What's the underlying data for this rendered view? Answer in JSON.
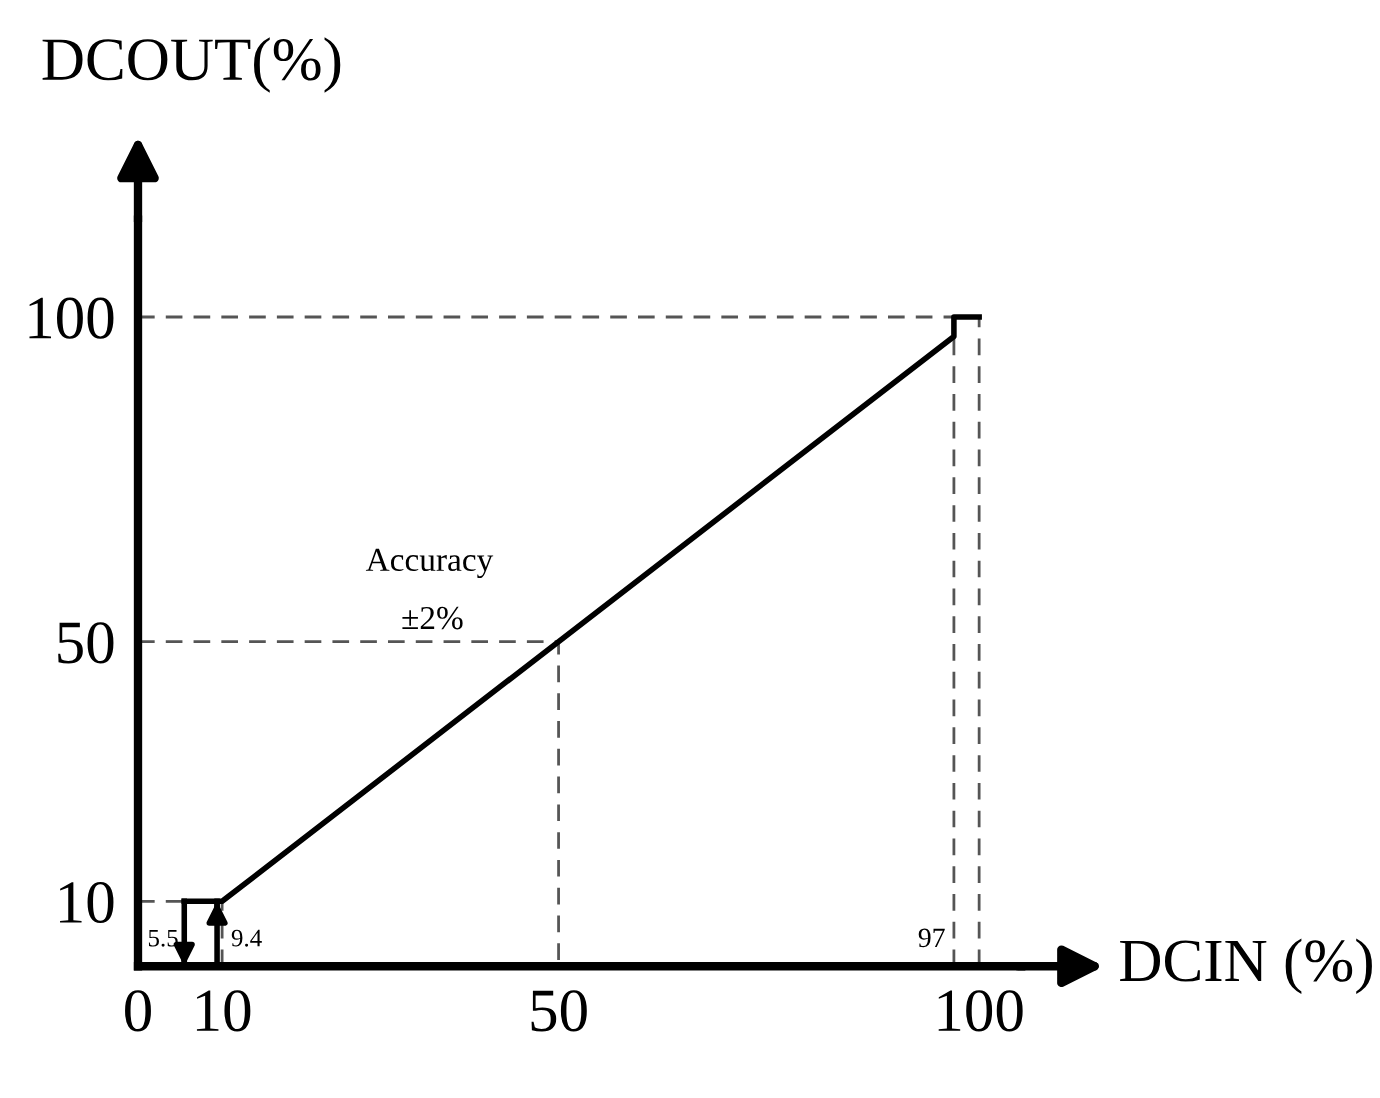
{
  "chart_data": {
    "type": "line",
    "xlabel": "DCIN (%)",
    "ylabel": "DCOUT(%)",
    "xlim": [
      0,
      105
    ],
    "ylim": [
      0,
      115
    ],
    "xticks": [
      0,
      10,
      50,
      100
    ],
    "yticks": [
      10,
      50,
      100
    ],
    "grid": false,
    "legend": false,
    "marker": "none",
    "series": [
      {
        "color": "#000000",
        "line_style": "solid",
        "x": [
          5.5,
          10,
          97,
          97,
          100
        ],
        "values": [
          10,
          10,
          97,
          100,
          100
        ]
      },
      {
        "color": "#000000",
        "line_style": "solid",
        "x": [
          5.5,
          5.5
        ],
        "values": [
          10,
          0
        ]
      },
      {
        "color": "#000000",
        "line_style": "solid",
        "x": [
          9.4,
          9.4
        ],
        "values": [
          0,
          10
        ]
      },
      {
        "color": "#555555",
        "line_style": "dashed",
        "x": [
          0,
          5.5
        ],
        "values": [
          10,
          10
        ]
      },
      {
        "color": "#555555",
        "line_style": "dashed",
        "x": [
          10,
          10
        ],
        "values": [
          0,
          10
        ]
      },
      {
        "color": "#555555",
        "line_style": "dashed",
        "x": [
          0,
          50,
          50
        ],
        "values": [
          50,
          50,
          0
        ]
      },
      {
        "color": "#555555",
        "line_style": "dashed",
        "x": [
          0,
          97
        ],
        "values": [
          100,
          100
        ]
      },
      {
        "color": "#555555",
        "line_style": "dashed",
        "x": [
          97,
          97
        ],
        "values": [
          0,
          100
        ]
      },
      {
        "color": "#555555",
        "line_style": "dashed",
        "x": [
          100,
          100
        ],
        "values": [
          0,
          100
        ]
      }
    ],
    "annotations": [
      {
        "text": "5.5",
        "x": 5.5,
        "y": 4
      },
      {
        "text": "9.4",
        "x": 9.4,
        "y": 4
      },
      {
        "text": "97",
        "x": 97,
        "y": 4
      },
      "Accuracy",
      {
        "text": "±2%",
        "x": 35,
        "y": 50
      }
    ]
  }
}
